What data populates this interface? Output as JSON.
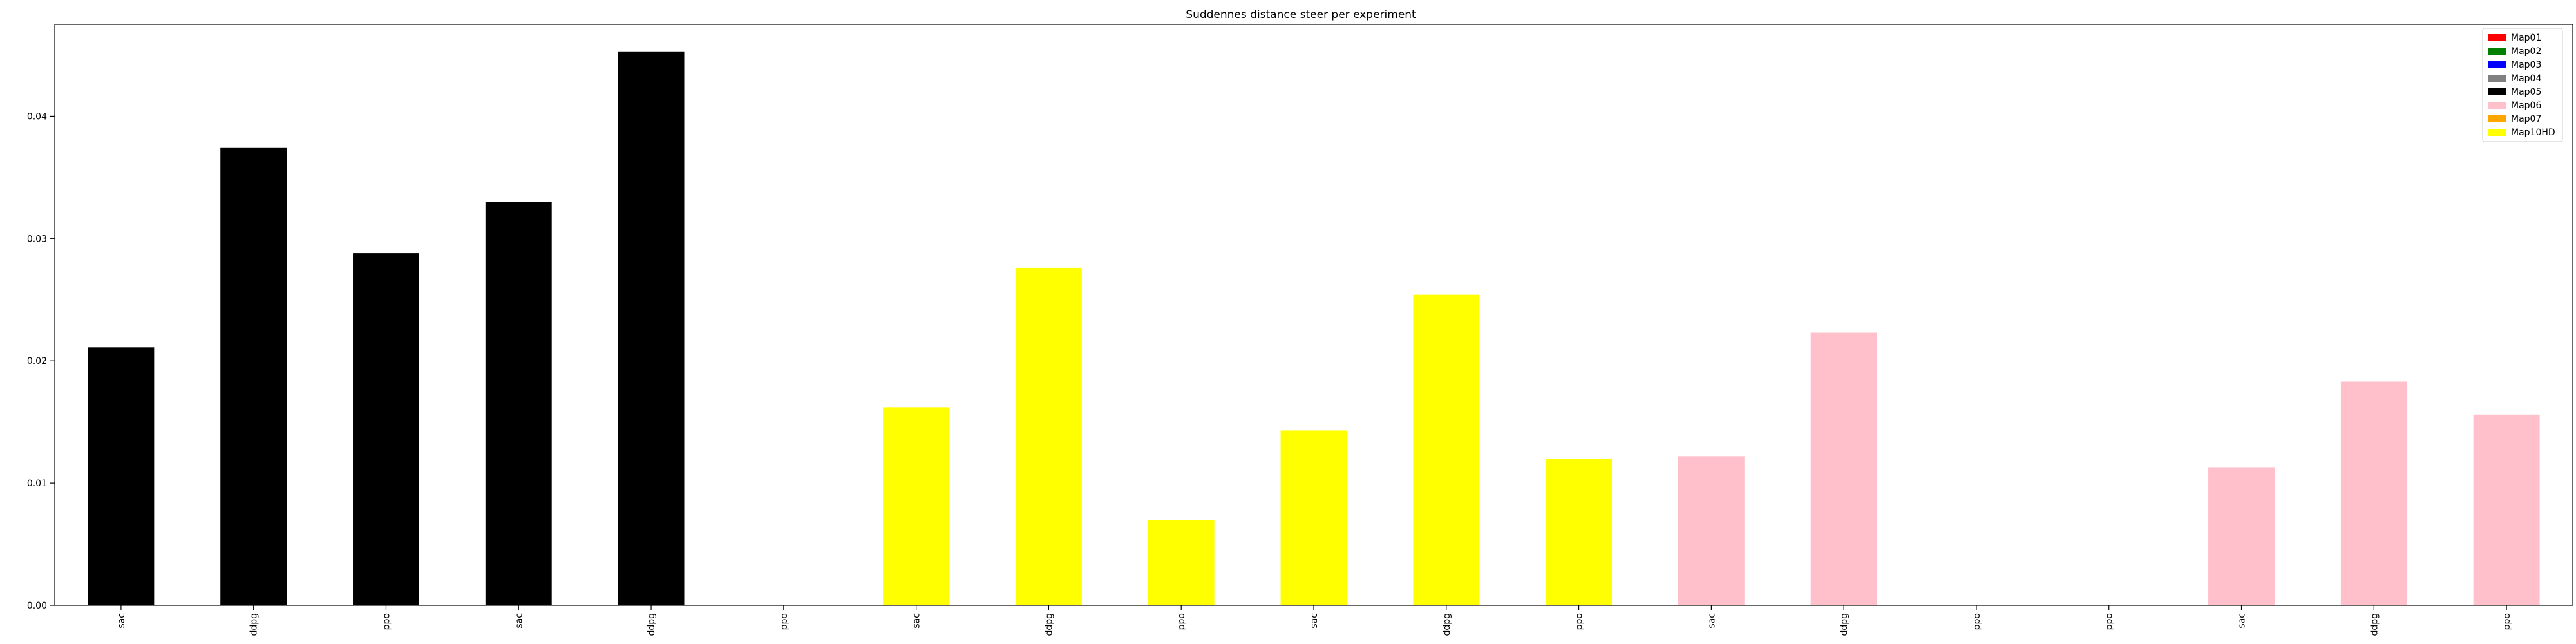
{
  "chart_data": {
    "type": "bar",
    "title": "Suddennes distance steer per experiment",
    "xlabel": "",
    "ylabel": "",
    "categories": [
      "sac",
      "ddpg",
      "ppo",
      "sac",
      "ddpg",
      "ppo",
      "sac",
      "ddpg",
      "ppo",
      "sac",
      "ddpg",
      "ppo",
      "sac",
      "ddpg",
      "ppo",
      "ppo",
      "sac",
      "ddpg",
      "ppo"
    ],
    "values": [
      0.0211,
      0.0374,
      0.0288,
      0.033,
      0.0453,
      0.0,
      0.0162,
      0.0276,
      0.007,
      0.0143,
      0.0254,
      0.012,
      0.0122,
      0.0223,
      0.0,
      0.0,
      0.0113,
      0.0183,
      0.0156
    ],
    "bar_series": [
      "Map05",
      "Map05",
      "Map05",
      "Map05",
      "Map05",
      "Map05",
      "Map10HD",
      "Map10HD",
      "Map10HD",
      "Map10HD",
      "Map10HD",
      "Map10HD",
      "Map06",
      "Map06",
      "Map06",
      "Map06",
      "Map06",
      "Map06",
      "Map06"
    ],
    "ylim": [
      0,
      0.0475
    ],
    "yticks": [
      0.0,
      0.01,
      0.02,
      0.03,
      0.04
    ],
    "ytick_labels": [
      "0.00",
      "0.01",
      "0.02",
      "0.03",
      "0.04"
    ],
    "grid": false,
    "legend_position": "top-right",
    "legend": [
      {
        "name": "Map01",
        "color": "#ff0000"
      },
      {
        "name": "Map02",
        "color": "#008000"
      },
      {
        "name": "Map03",
        "color": "#0000ff"
      },
      {
        "name": "Map04",
        "color": "#808080"
      },
      {
        "name": "Map05",
        "color": "#000000"
      },
      {
        "name": "Map06",
        "color": "#ffc0cb"
      },
      {
        "name": "Map07",
        "color": "#ffa500"
      },
      {
        "name": "Map10HD",
        "color": "#ffff00"
      }
    ]
  }
}
